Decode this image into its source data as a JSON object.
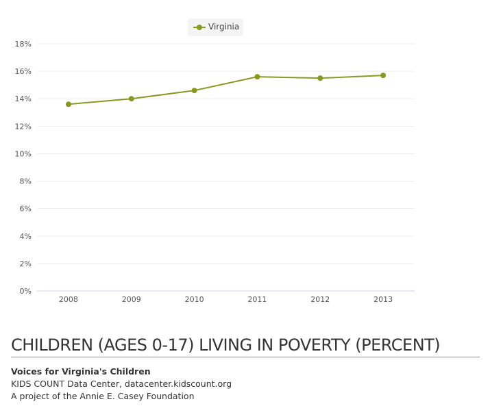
{
  "chart_data": {
    "type": "line",
    "title": "CHILDREN (AGES 0-17) LIVING IN POVERTY (PERCENT)",
    "categories": [
      "2008",
      "2009",
      "2010",
      "2011",
      "2012",
      "2013"
    ],
    "series": [
      {
        "name": "Virginia",
        "values": [
          13.6,
          14.0,
          14.6,
          15.6,
          15.5,
          15.7
        ],
        "color": "#859a1f"
      }
    ],
    "yticks": [
      "0%",
      "2%",
      "4%",
      "6%",
      "8%",
      "10%",
      "12%",
      "14%",
      "16%",
      "18%"
    ],
    "ylim": [
      0,
      18
    ],
    "xlabel": "",
    "ylabel": "",
    "grid": true,
    "legend": "top-center"
  },
  "footer": {
    "org": "Voices for Virginia's Children",
    "line2": "KIDS COUNT Data Center, datacenter.kidscount.org",
    "line3": "A project of the Annie E. Casey Foundation"
  }
}
